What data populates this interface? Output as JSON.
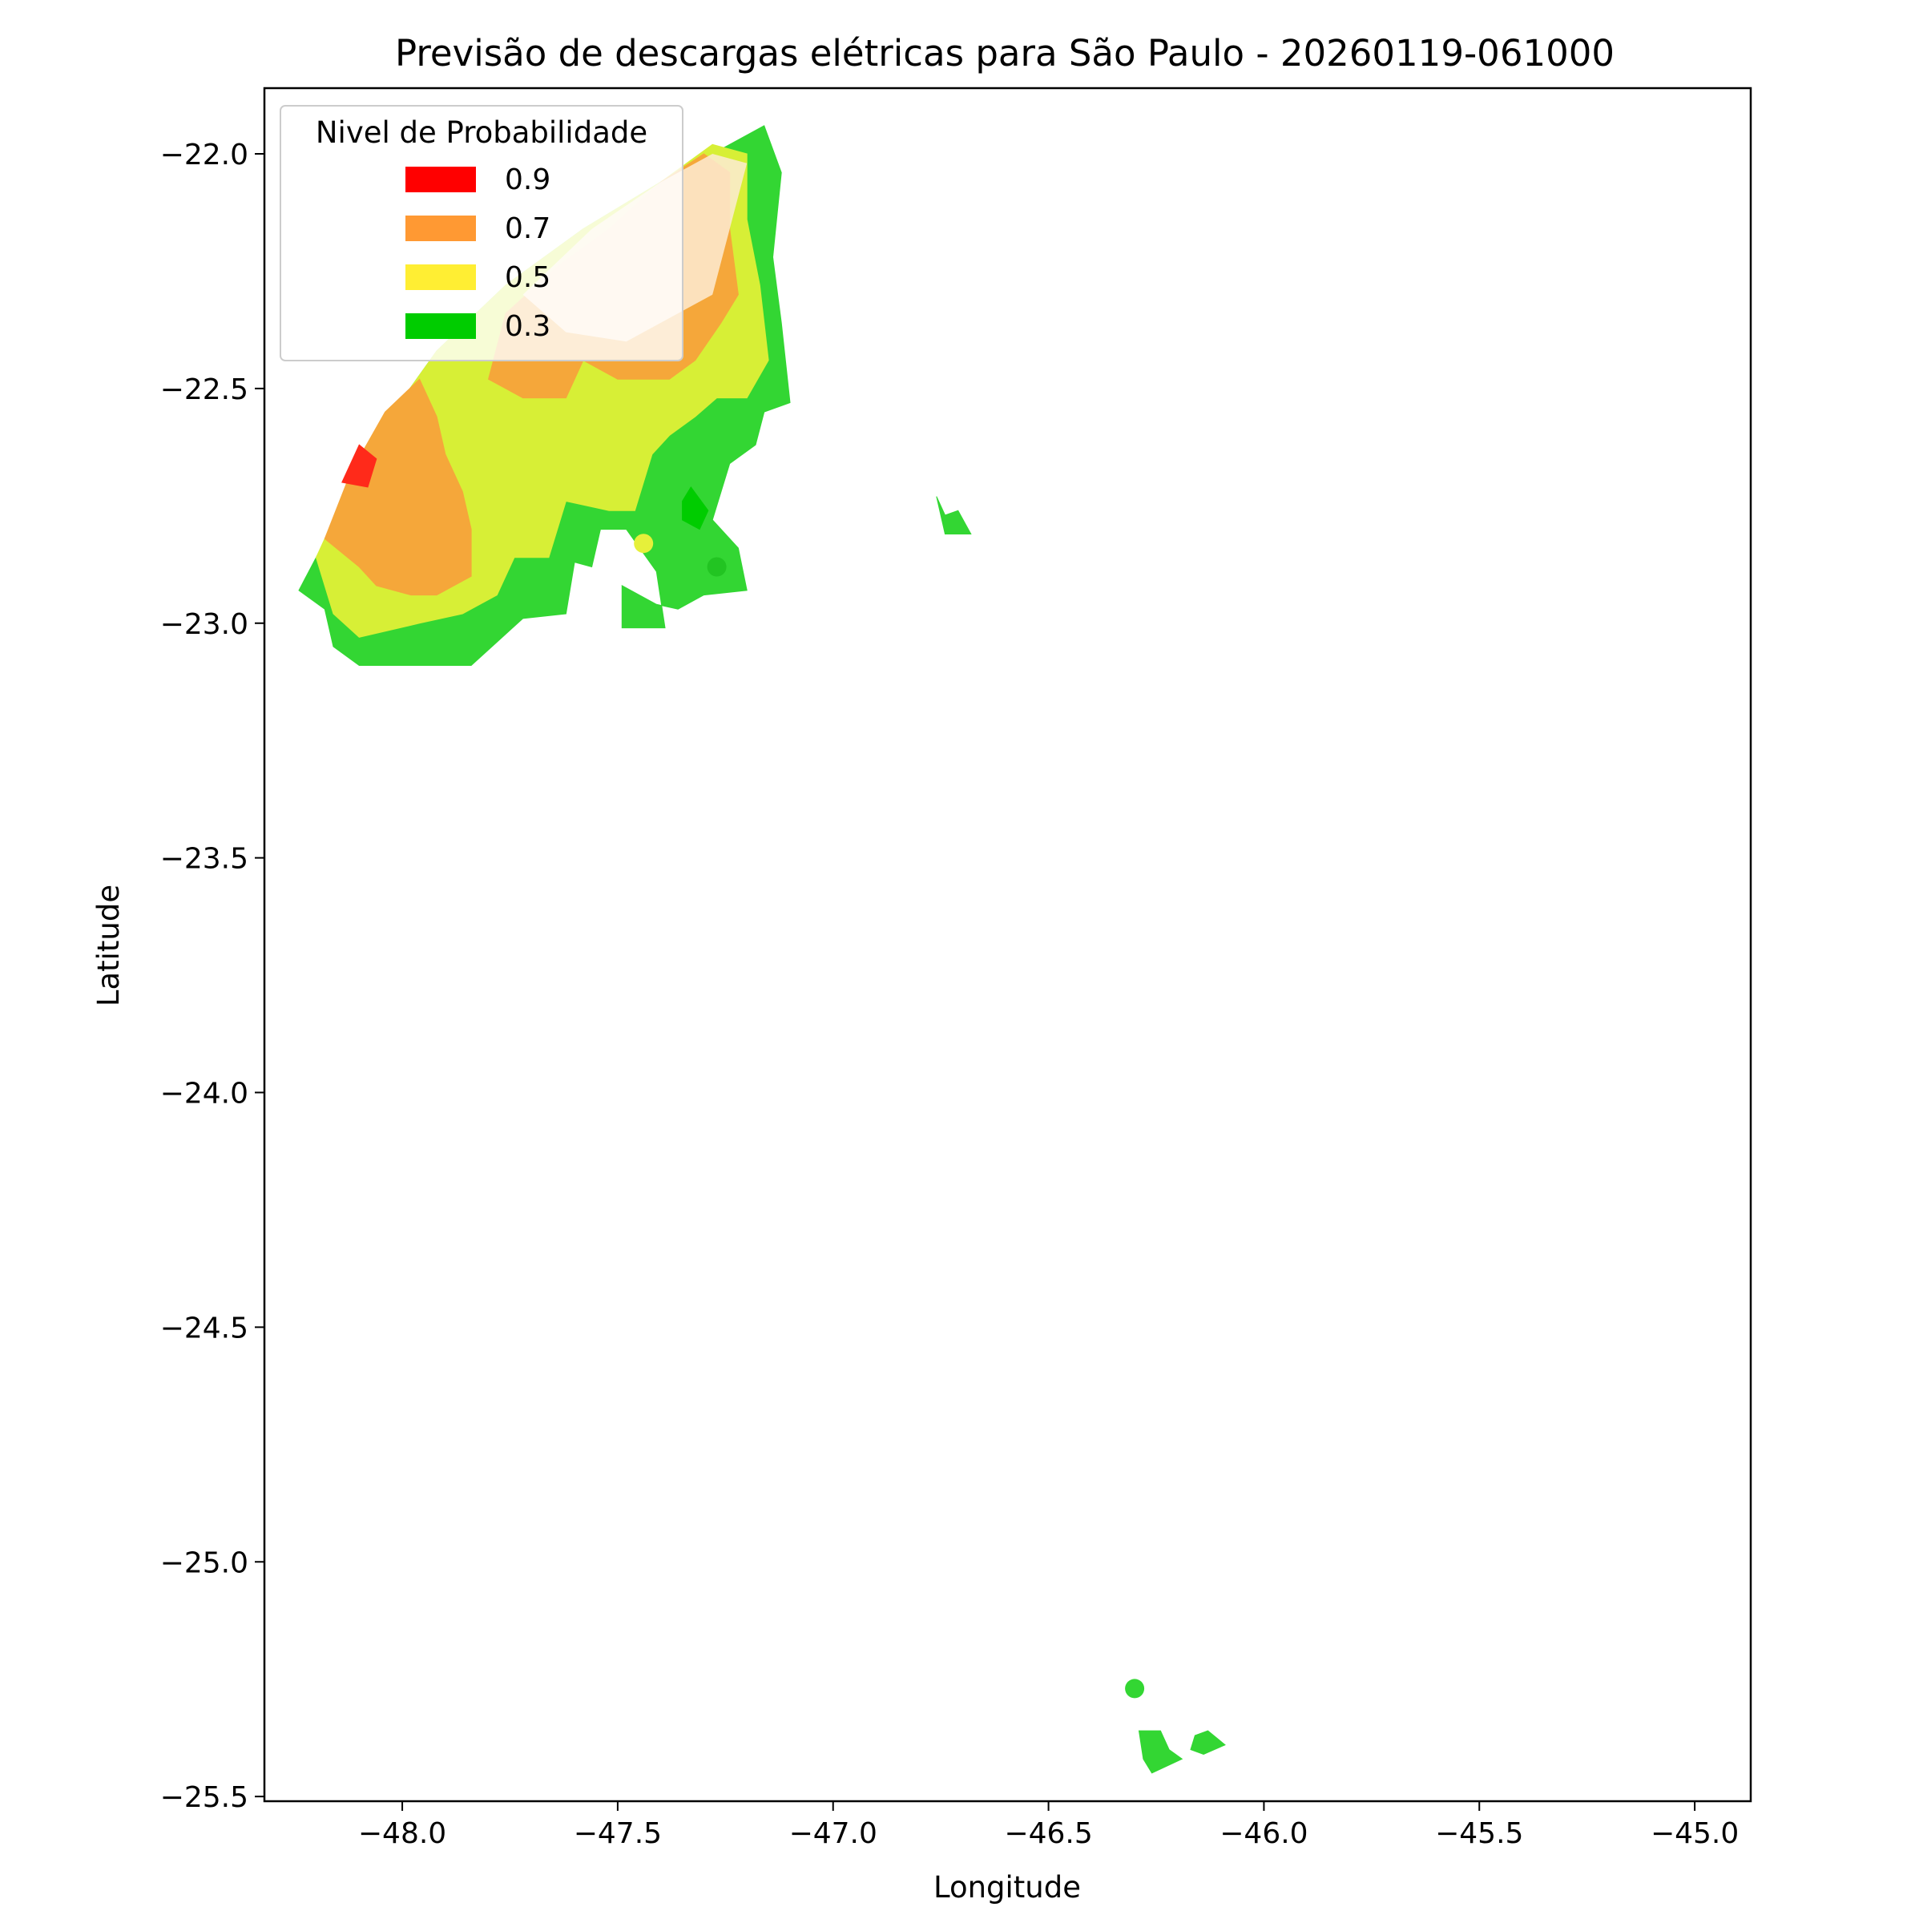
{
  "chart_data": {
    "type": "map",
    "title": "Previsão de descargas elétricas para São Paulo - 20260119-061000",
    "xlabel": "Longitude",
    "ylabel": "Latitude",
    "xlim": [
      -48.32,
      -44.87
    ],
    "ylim": [
      -25.51,
      -21.86
    ],
    "x_ticks": [
      -48.0,
      -47.5,
      -47.0,
      -46.5,
      -46.0,
      -45.5,
      -45.0
    ],
    "x_tick_labels": [
      "−48.0",
      "−47.5",
      "−47.0",
      "−46.5",
      "−46.0",
      "−45.5",
      "−45.0"
    ],
    "y_ticks": [
      -22.0,
      -22.5,
      -23.0,
      -23.5,
      -24.0,
      -24.5,
      -25.0,
      -25.5
    ],
    "y_tick_labels": [
      "−22.0",
      "−22.5",
      "−23.0",
      "−23.5",
      "−24.0",
      "−24.5",
      "−25.0",
      "−25.5"
    ],
    "grid": false,
    "legend": {
      "title": "Nivel de Probabilidade",
      "placement": "upper-left",
      "entries": [
        {
          "label": "0.9",
          "color": "#ff0000"
        },
        {
          "label": "0.7",
          "color": "#ff9933"
        },
        {
          "label": "0.5",
          "color": "#ffee33"
        },
        {
          "label": "0.3",
          "color": "#00cc00"
        }
      ]
    },
    "regions": [
      {
        "level": "0.3",
        "color": "#33d633",
        "polygon": [
          [
            -48.24,
            -22.93
          ],
          [
            -48.16,
            -22.79
          ],
          [
            -48.06,
            -22.6
          ],
          [
            -47.92,
            -22.42
          ],
          [
            -47.76,
            -22.28
          ],
          [
            -47.58,
            -22.16
          ],
          [
            -47.4,
            -22.06
          ],
          [
            -47.24,
            -21.98
          ],
          [
            -47.16,
            -21.94
          ],
          [
            -47.12,
            -22.04
          ],
          [
            -47.14,
            -22.22
          ],
          [
            -47.12,
            -22.36
          ],
          [
            -47.1,
            -22.53
          ],
          [
            -47.16,
            -22.55
          ],
          [
            -47.18,
            -22.62
          ],
          [
            -47.24,
            -22.66
          ],
          [
            -47.28,
            -22.78
          ],
          [
            -47.22,
            -22.84
          ],
          [
            -47.2,
            -22.93
          ],
          [
            -47.3,
            -22.94
          ],
          [
            -47.36,
            -22.97
          ],
          [
            -47.41,
            -22.96
          ],
          [
            -47.49,
            -22.92
          ],
          [
            -47.49,
            -23.01
          ],
          [
            -47.39,
            -23.01
          ],
          [
            -47.41,
            -22.89
          ],
          [
            -47.48,
            -22.8
          ],
          [
            -47.54,
            -22.8
          ],
          [
            -47.56,
            -22.88
          ],
          [
            -47.6,
            -22.87
          ],
          [
            -47.62,
            -22.98
          ],
          [
            -47.72,
            -22.99
          ],
          [
            -47.78,
            -23.04
          ],
          [
            -47.84,
            -23.09
          ],
          [
            -47.96,
            -23.09
          ],
          [
            -48.1,
            -23.09
          ],
          [
            -48.16,
            -23.05
          ],
          [
            -48.18,
            -22.97
          ]
        ]
      },
      {
        "level": "0.3",
        "color": "#33d633",
        "polygon": [
          [
            -46.76,
            -22.73
          ],
          [
            -46.74,
            -22.77
          ],
          [
            -46.71,
            -22.76
          ],
          [
            -46.68,
            -22.81
          ],
          [
            -46.74,
            -22.81
          ]
        ]
      },
      {
        "level": "0.3",
        "color": "#33d633",
        "polygon": [
          [
            -46.29,
            -25.36
          ],
          [
            -46.24,
            -25.36
          ],
          [
            -46.22,
            -25.4
          ],
          [
            -46.19,
            -25.42
          ],
          [
            -46.26,
            -25.45
          ],
          [
            -46.28,
            -25.42
          ]
        ]
      },
      {
        "level": "0.3",
        "color": "#33d633",
        "polygon": [
          [
            -46.16,
            -25.37
          ],
          [
            -46.13,
            -25.36
          ],
          [
            -46.09,
            -25.39
          ],
          [
            -46.14,
            -25.41
          ],
          [
            -46.17,
            -25.4
          ]
        ]
      },
      {
        "level": "0.5",
        "color": "#d7ef36",
        "polygon": [
          [
            -48.2,
            -22.86
          ],
          [
            -48.14,
            -22.74
          ],
          [
            -48.06,
            -22.6
          ],
          [
            -47.92,
            -22.42
          ],
          [
            -47.76,
            -22.28
          ],
          [
            -47.58,
            -22.16
          ],
          [
            -47.4,
            -22.06
          ],
          [
            -47.28,
            -21.98
          ],
          [
            -47.2,
            -22.0
          ],
          [
            -47.2,
            -22.14
          ],
          [
            -47.17,
            -22.28
          ],
          [
            -47.15,
            -22.44
          ],
          [
            -47.2,
            -22.52
          ],
          [
            -47.27,
            -22.52
          ],
          [
            -47.32,
            -22.56
          ],
          [
            -47.38,
            -22.6
          ],
          [
            -47.42,
            -22.64
          ],
          [
            -47.46,
            -22.76
          ],
          [
            -47.52,
            -22.76
          ],
          [
            -47.62,
            -22.74
          ],
          [
            -47.66,
            -22.86
          ],
          [
            -47.74,
            -22.86
          ],
          [
            -47.78,
            -22.94
          ],
          [
            -47.86,
            -22.98
          ],
          [
            -47.96,
            -23.0
          ],
          [
            -48.1,
            -23.03
          ],
          [
            -48.16,
            -22.98
          ]
        ]
      },
      {
        "level": "0.7",
        "color": "#f5a73a",
        "polygon": [
          [
            -48.18,
            -22.82
          ],
          [
            -48.12,
            -22.68
          ],
          [
            -48.04,
            -22.55
          ],
          [
            -47.96,
            -22.48
          ],
          [
            -47.92,
            -22.56
          ],
          [
            -47.9,
            -22.64
          ],
          [
            -47.86,
            -22.72
          ],
          [
            -47.84,
            -22.8
          ],
          [
            -47.84,
            -22.9
          ],
          [
            -47.92,
            -22.94
          ],
          [
            -47.98,
            -22.94
          ],
          [
            -48.06,
            -22.92
          ],
          [
            -48.1,
            -22.88
          ]
        ]
      },
      {
        "level": "0.7",
        "color": "#f5a73a",
        "polygon": [
          [
            -47.4,
            -22.06
          ],
          [
            -47.3,
            -22.0
          ],
          [
            -47.24,
            -22.04
          ],
          [
            -47.24,
            -22.16
          ],
          [
            -47.22,
            -22.3
          ],
          [
            -47.26,
            -22.36
          ],
          [
            -47.32,
            -22.44
          ],
          [
            -47.38,
            -22.48
          ],
          [
            -47.5,
            -22.48
          ],
          [
            -47.58,
            -22.44
          ],
          [
            -47.62,
            -22.52
          ],
          [
            -47.72,
            -22.52
          ],
          [
            -47.8,
            -22.48
          ],
          [
            -47.76,
            -22.34
          ],
          [
            -47.64,
            -22.24
          ],
          [
            -47.52,
            -22.16
          ]
        ]
      },
      {
        "level": "0.9",
        "color": "#ff2a1a",
        "polygon": [
          [
            -48.14,
            -22.7
          ],
          [
            -48.1,
            -22.62
          ],
          [
            -48.06,
            -22.65
          ],
          [
            -48.08,
            -22.71
          ]
        ]
      },
      {
        "level": "0.3",
        "color": "#00cc00",
        "polygon": [
          [
            -47.35,
            -22.74
          ],
          [
            -47.33,
            -22.71
          ],
          [
            -47.29,
            -22.76
          ],
          [
            -47.31,
            -22.8
          ],
          [
            -47.35,
            -22.78
          ]
        ]
      }
    ],
    "points": [
      {
        "lon": -47.44,
        "lat": -22.83,
        "level": "0.5",
        "color": "#e6f03a"
      },
      {
        "lon": -47.27,
        "lat": -22.88,
        "level": "0.3",
        "color": "#22c422"
      },
      {
        "lon": -46.3,
        "lat": -25.27,
        "level": "0.3",
        "color": "#33d633"
      }
    ],
    "fade_region": {
      "color": "#fdebd3",
      "polygon": [
        [
          -47.72,
          -22.3
        ],
        [
          -47.56,
          -22.16
        ],
        [
          -47.4,
          -22.06
        ],
        [
          -47.28,
          -22.0
        ],
        [
          -47.2,
          -22.02
        ],
        [
          -47.24,
          -22.16
        ],
        [
          -47.28,
          -22.3
        ],
        [
          -47.48,
          -22.4
        ],
        [
          -47.62,
          -22.38
        ]
      ]
    }
  }
}
